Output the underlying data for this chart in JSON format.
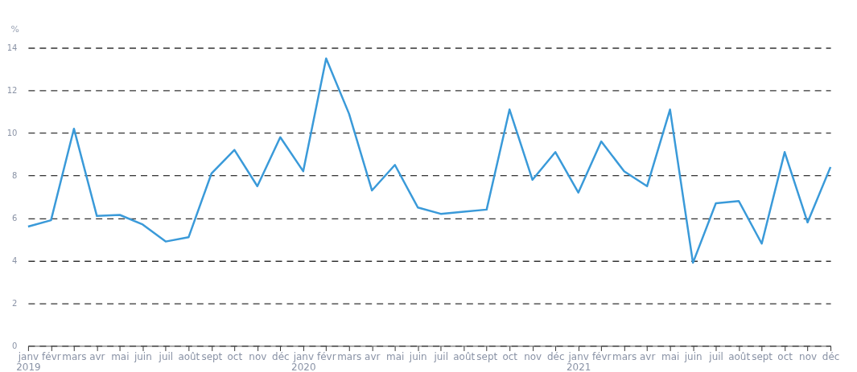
{
  "chart_data": {
    "type": "line",
    "ylabel": "%",
    "categories": [
      "janv 2019",
      "févr",
      "mars",
      "avr",
      "mai",
      "juin",
      "juil",
      "août",
      "sept",
      "oct",
      "nov",
      "déc",
      "janv 2020",
      "févr",
      "mars",
      "avr",
      "mai",
      "juin",
      "juil",
      "août",
      "sept",
      "oct",
      "nov",
      "déc",
      "janv 2021",
      "févr",
      "mars",
      "avr",
      "mai",
      "juin",
      "juil",
      "août",
      "sept",
      "oct",
      "nov",
      "déc"
    ],
    "series": [
      {
        "color": "#3a9ad9",
        "values": [
          5.6,
          5.9,
          10.2,
          6.1,
          6.15,
          5.7,
          4.9,
          5.1,
          8.1,
          9.2,
          7.5,
          9.8,
          8.2,
          13.5,
          10.9,
          7.3,
          8.5,
          6.5,
          6.2,
          6.3,
          6.4,
          11.1,
          7.8,
          9.1,
          7.2,
          9.6,
          8.2,
          7.5,
          11.1,
          3.9,
          6.7,
          6.8,
          4.8,
          9.1,
          5.8,
          8.4
        ]
      }
    ],
    "ylim": [
      0,
      14
    ],
    "yticks": [
      0,
      2,
      4,
      6,
      8,
      10,
      12,
      14
    ],
    "grid": "y",
    "line_style": "solid",
    "marker": "none"
  }
}
